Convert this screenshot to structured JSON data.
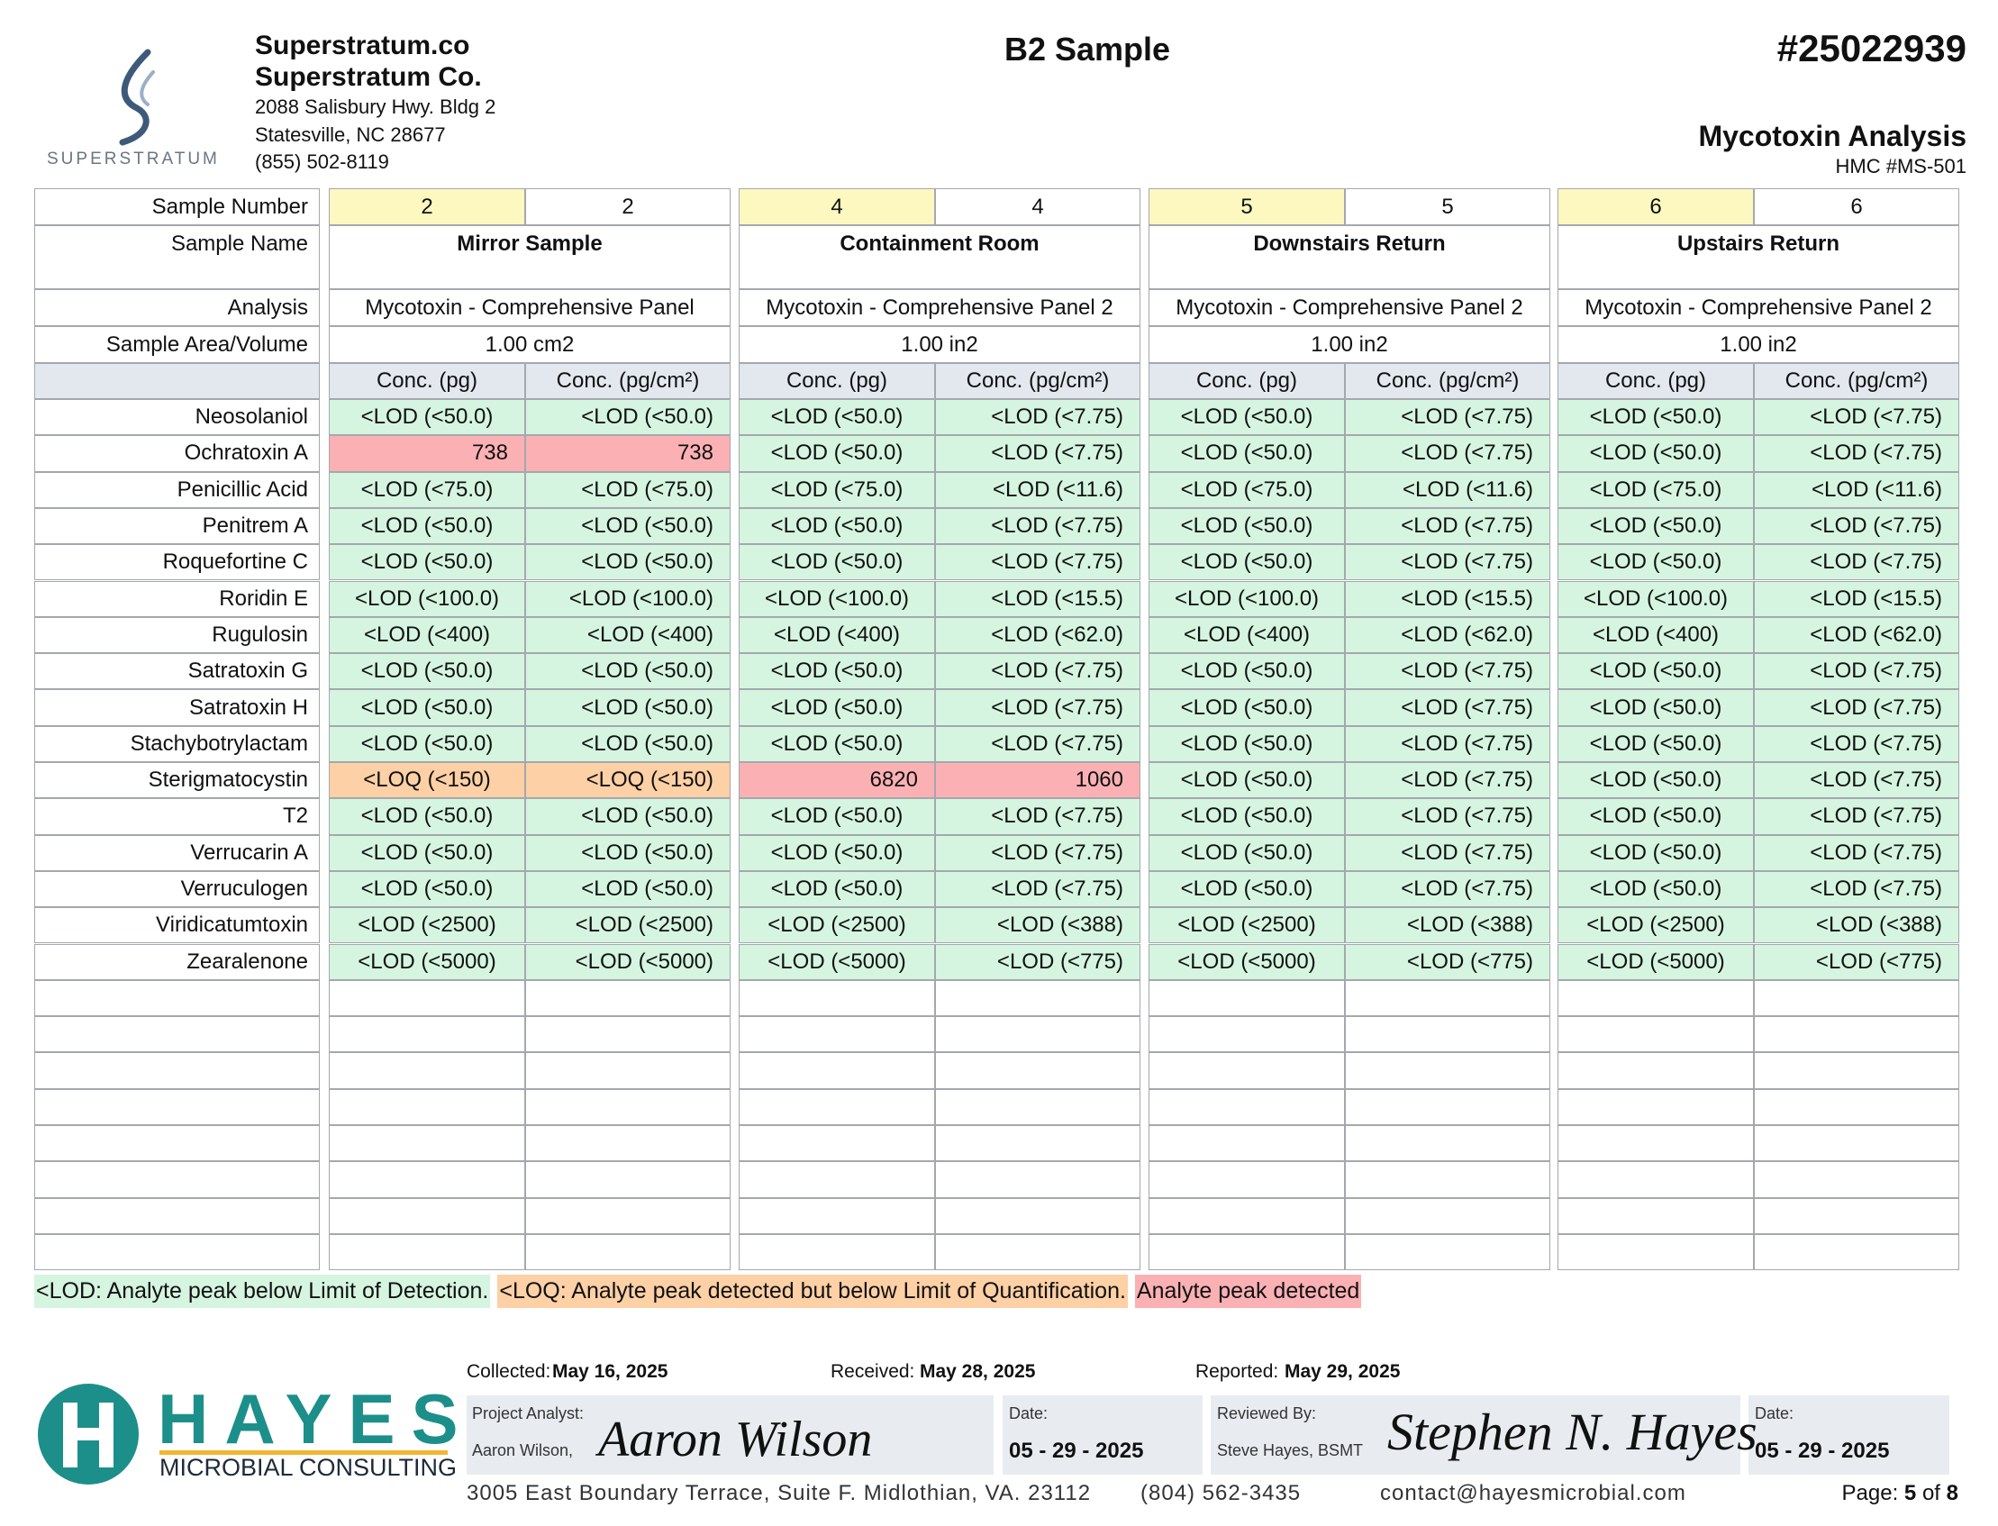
{
  "header": {
    "logo_text": "SUPERSTRATUM",
    "company_short": "Superstratum.co",
    "company": "Superstratum Co.",
    "address1": "2088 Salisbury Hwy. Bldg 2",
    "address2": "Statesville, NC 28677",
    "phone": "(855) 502-8119",
    "title": "B2 Sample",
    "report_number": "#25022939",
    "analysis_title": "Mycotoxin Analysis",
    "method": "HMC #MS-501"
  },
  "table": {
    "row_labels": [
      "Sample Number",
      "Sample Name",
      "Analysis",
      "Sample Area/Volume"
    ],
    "samples": [
      {
        "numbers": [
          "2",
          "2"
        ],
        "name": "Mirror Sample",
        "analysis": "Mycotoxin - Comprehensive Panel",
        "area": "1.00 cm2",
        "columns": [
          "Conc. (pg)",
          "Conc. (pg/cm²)"
        ]
      },
      {
        "numbers": [
          "4",
          "4"
        ],
        "name": "Containment Room",
        "analysis": "Mycotoxin - Comprehensive Panel 2",
        "area": "1.00 in2",
        "columns": [
          "Conc. (pg)",
          "Conc. (pg/cm²)"
        ]
      },
      {
        "numbers": [
          "5",
          "5"
        ],
        "name": "Downstairs Return",
        "analysis": "Mycotoxin - Comprehensive Panel 2",
        "area": "1.00 in2",
        "columns": [
          "Conc. (pg)",
          "Conc. (pg/cm²)"
        ]
      },
      {
        "numbers": [
          "6",
          "6"
        ],
        "name": "Upstairs Return",
        "analysis": "Mycotoxin - Comprehensive Panel 2",
        "area": "1.00 in2",
        "columns": [
          "Conc. (pg)",
          "Conc. (pg/cm²)"
        ]
      }
    ],
    "analytes": [
      "Neosolaniol",
      "Ochratoxin A",
      "Penicillic Acid",
      "Penitrem A",
      "Roquefortine C",
      "Roridin E",
      "Rugulosin",
      "Satratoxin G",
      "Satratoxin H",
      "Stachybotrylactam",
      "Sterigmatocystin",
      "T2",
      "Verrucarin A",
      "Verruculogen",
      "Viridicatumtoxin",
      "Zearalenone"
    ],
    "results": [
      {
        "cells": [
          "<LOD (<50.0)",
          "<LOD (<50.0)",
          "<LOD (<50.0)",
          "<LOD (<7.75)",
          "<LOD (<50.0)",
          "<LOD (<7.75)",
          "<LOD (<50.0)",
          "<LOD (<7.75)"
        ],
        "colors": [
          "#d5f5e0",
          "#d5f5e0",
          "#d5f5e0",
          "#d5f5e0",
          "#d5f5e0",
          "#d5f5e0",
          "#d5f5e0",
          "#d5f5e0"
        ]
      },
      {
        "cells": [
          "738",
          "738",
          "<LOD (<50.0)",
          "<LOD (<7.75)",
          "<LOD (<50.0)",
          "<LOD (<7.75)",
          "<LOD (<50.0)",
          "<LOD (<7.75)"
        ],
        "colors": [
          "#fbb1b4",
          "#fbb1b4",
          "#d5f5e0",
          "#d5f5e0",
          "#d5f5e0",
          "#d5f5e0",
          "#d5f5e0",
          "#d5f5e0"
        ]
      },
      {
        "cells": [
          "<LOD (<75.0)",
          "<LOD (<75.0)",
          "<LOD (<75.0)",
          "<LOD (<11.6)",
          "<LOD (<75.0)",
          "<LOD (<11.6)",
          "<LOD (<75.0)",
          "<LOD (<11.6)"
        ],
        "colors": [
          "#d5f5e0",
          "#d5f5e0",
          "#d5f5e0",
          "#d5f5e0",
          "#d5f5e0",
          "#d5f5e0",
          "#d5f5e0",
          "#d5f5e0"
        ]
      },
      {
        "cells": [
          "<LOD (<50.0)",
          "<LOD (<50.0)",
          "<LOD (<50.0)",
          "<LOD (<7.75)",
          "<LOD (<50.0)",
          "<LOD (<7.75)",
          "<LOD (<50.0)",
          "<LOD (<7.75)"
        ],
        "colors": [
          "#d5f5e0",
          "#d5f5e0",
          "#d5f5e0",
          "#d5f5e0",
          "#d5f5e0",
          "#d5f5e0",
          "#d5f5e0",
          "#d5f5e0"
        ]
      },
      {
        "cells": [
          "<LOD (<50.0)",
          "<LOD (<50.0)",
          "<LOD (<50.0)",
          "<LOD (<7.75)",
          "<LOD (<50.0)",
          "<LOD (<7.75)",
          "<LOD (<50.0)",
          "<LOD (<7.75)"
        ],
        "colors": [
          "#d5f5e0",
          "#d5f5e0",
          "#d5f5e0",
          "#d5f5e0",
          "#d5f5e0",
          "#d5f5e0",
          "#d5f5e0",
          "#d5f5e0"
        ]
      },
      {
        "cells": [
          "<LOD (<100.0)",
          "<LOD (<100.0)",
          "<LOD (<100.0)",
          "<LOD (<15.5)",
          "<LOD (<100.0)",
          "<LOD (<15.5)",
          "<LOD (<100.0)",
          "<LOD (<15.5)"
        ],
        "colors": [
          "#d5f5e0",
          "#d5f5e0",
          "#d5f5e0",
          "#d5f5e0",
          "#d5f5e0",
          "#d5f5e0",
          "#d5f5e0",
          "#d5f5e0"
        ]
      },
      {
        "cells": [
          "<LOD (<400)",
          "<LOD (<400)",
          "<LOD (<400)",
          "<LOD (<62.0)",
          "<LOD (<400)",
          "<LOD (<62.0)",
          "<LOD (<400)",
          "<LOD (<62.0)"
        ],
        "colors": [
          "#d5f5e0",
          "#d5f5e0",
          "#d5f5e0",
          "#d5f5e0",
          "#d5f5e0",
          "#d5f5e0",
          "#d5f5e0",
          "#d5f5e0"
        ]
      },
      {
        "cells": [
          "<LOD (<50.0)",
          "<LOD (<50.0)",
          "<LOD (<50.0)",
          "<LOD (<7.75)",
          "<LOD (<50.0)",
          "<LOD (<7.75)",
          "<LOD (<50.0)",
          "<LOD (<7.75)"
        ],
        "colors": [
          "#d5f5e0",
          "#d5f5e0",
          "#d5f5e0",
          "#d5f5e0",
          "#d5f5e0",
          "#d5f5e0",
          "#d5f5e0",
          "#d5f5e0"
        ]
      },
      {
        "cells": [
          "<LOD (<50.0)",
          "<LOD (<50.0)",
          "<LOD (<50.0)",
          "<LOD (<7.75)",
          "<LOD (<50.0)",
          "<LOD (<7.75)",
          "<LOD (<50.0)",
          "<LOD (<7.75)"
        ],
        "colors": [
          "#d5f5e0",
          "#d5f5e0",
          "#d5f5e0",
          "#d5f5e0",
          "#d5f5e0",
          "#d5f5e0",
          "#d5f5e0",
          "#d5f5e0"
        ]
      },
      {
        "cells": [
          "<LOD (<50.0)",
          "<LOD (<50.0)",
          "<LOD (<50.0)",
          "<LOD (<7.75)",
          "<LOD (<50.0)",
          "<LOD (<7.75)",
          "<LOD (<50.0)",
          "<LOD (<7.75)"
        ],
        "colors": [
          "#d5f5e0",
          "#d5f5e0",
          "#d5f5e0",
          "#d5f5e0",
          "#d5f5e0",
          "#d5f5e0",
          "#d5f5e0",
          "#d5f5e0"
        ]
      },
      {
        "cells": [
          "<LOQ (<150)",
          "<LOQ (<150)",
          "6820",
          "1060",
          "<LOD (<50.0)",
          "<LOD (<7.75)",
          "<LOD (<50.0)",
          "<LOD (<7.75)"
        ],
        "colors": [
          "#fdd0a5",
          "#fdd0a5",
          "#fbb1b4",
          "#fbb1b4",
          "#d5f5e0",
          "#d5f5e0",
          "#d5f5e0",
          "#d5f5e0"
        ]
      },
      {
        "cells": [
          "<LOD (<50.0)",
          "<LOD (<50.0)",
          "<LOD (<50.0)",
          "<LOD (<7.75)",
          "<LOD (<50.0)",
          "<LOD (<7.75)",
          "<LOD (<50.0)",
          "<LOD (<7.75)"
        ],
        "colors": [
          "#d5f5e0",
          "#d5f5e0",
          "#d5f5e0",
          "#d5f5e0",
          "#d5f5e0",
          "#d5f5e0",
          "#d5f5e0",
          "#d5f5e0"
        ]
      },
      {
        "cells": [
          "<LOD (<50.0)",
          "<LOD (<50.0)",
          "<LOD (<50.0)",
          "<LOD (<7.75)",
          "<LOD (<50.0)",
          "<LOD (<7.75)",
          "<LOD (<50.0)",
          "<LOD (<7.75)"
        ],
        "colors": [
          "#d5f5e0",
          "#d5f5e0",
          "#d5f5e0",
          "#d5f5e0",
          "#d5f5e0",
          "#d5f5e0",
          "#d5f5e0",
          "#d5f5e0"
        ]
      },
      {
        "cells": [
          "<LOD (<50.0)",
          "<LOD (<50.0)",
          "<LOD (<50.0)",
          "<LOD (<7.75)",
          "<LOD (<50.0)",
          "<LOD (<7.75)",
          "<LOD (<50.0)",
          "<LOD (<7.75)"
        ],
        "colors": [
          "#d5f5e0",
          "#d5f5e0",
          "#d5f5e0",
          "#d5f5e0",
          "#d5f5e0",
          "#d5f5e0",
          "#d5f5e0",
          "#d5f5e0"
        ]
      },
      {
        "cells": [
          "<LOD (<2500)",
          "<LOD (<2500)",
          "<LOD (<2500)",
          "<LOD (<388)",
          "<LOD (<2500)",
          "<LOD (<388)",
          "<LOD (<2500)",
          "<LOD (<388)"
        ],
        "colors": [
          "#d5f5e0",
          "#d5f5e0",
          "#d5f5e0",
          "#d5f5e0",
          "#d5f5e0",
          "#d5f5e0",
          "#d5f5e0",
          "#d5f5e0"
        ]
      },
      {
        "cells": [
          "<LOD (<5000)",
          "<LOD (<5000)",
          "<LOD (<5000)",
          "<LOD (<775)",
          "<LOD (<5000)",
          "<LOD (<775)",
          "<LOD (<5000)",
          "<LOD (<775)"
        ],
        "colors": [
          "#d5f5e0",
          "#d5f5e0",
          "#d5f5e0",
          "#d5f5e0",
          "#d5f5e0",
          "#d5f5e0",
          "#d5f5e0",
          "#d5f5e0"
        ]
      }
    ]
  },
  "legend": [
    {
      "text": "<LOD: Analyte peak below Limit of Detection.",
      "color": "#d5f5e0"
    },
    {
      "text": "<LOQ: Analyte peak detected but below Limit of Quantification.",
      "color": "#fdd0a5"
    },
    {
      "text": "Analyte peak detected",
      "color": "#fbb1b4"
    }
  ],
  "footer": {
    "logo_name": "HAYES",
    "logo_sub": "MICROBIAL CONSULTING",
    "collected_label": "Collected:",
    "collected": "May 16, 2025",
    "received_label": "Received:",
    "received": "May 28, 2025",
    "reported_label": "Reported:",
    "reported": "May 29, 2025",
    "analyst_label": "Project Analyst:",
    "analyst": "Aaron Wilson,",
    "analyst_signature": "Aaron Wilson",
    "date_label": "Date:",
    "analyst_date": "05 - 29 - 2025",
    "reviewer_label": "Reviewed By:",
    "reviewer": "Steve Hayes, BSMT",
    "reviewer_signature": "Stephen N. Hayes",
    "review_date_label": "Date:",
    "review_date": "05 - 29 - 2025",
    "address": "3005 East Boundary Terrace, Suite F. Midlothian, VA. 23112",
    "phone": "(804) 562-3435",
    "email": "contact@hayesmicrobial.com",
    "page_label": "Page:",
    "page": "5",
    "page_of": "of",
    "pages": "8"
  }
}
